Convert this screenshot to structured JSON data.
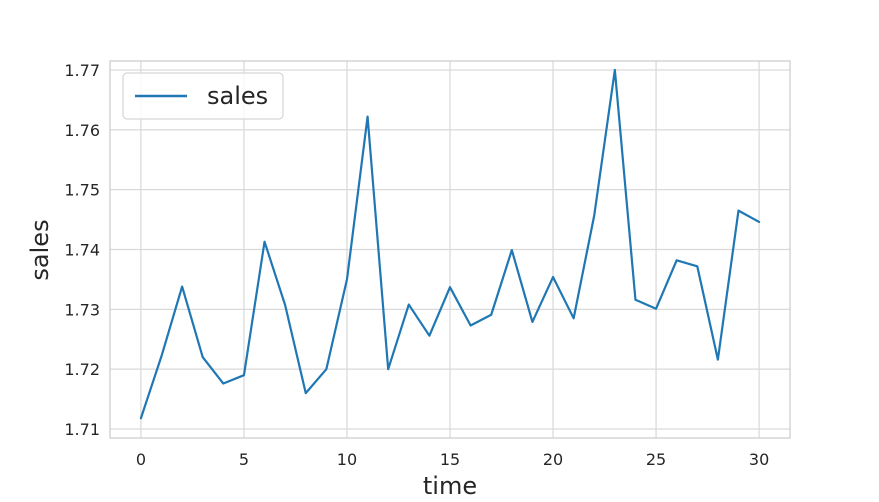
{
  "chart_data": {
    "type": "line",
    "title": "",
    "xlabel": "time",
    "ylabel": "sales",
    "xlim": [
      -1.5,
      31.5
    ],
    "ylim": [
      1.7085,
      1.7715
    ],
    "xticks": [
      0,
      5,
      10,
      15,
      20,
      25,
      30
    ],
    "yticks": [
      1.71,
      1.72,
      1.73,
      1.74,
      1.75,
      1.76,
      1.77
    ],
    "xtick_labels": [
      "0",
      "5",
      "10",
      "15",
      "20",
      "25",
      "30"
    ],
    "ytick_labels": [
      "1.71",
      "1.72",
      "1.73",
      "1.74",
      "1.75",
      "1.76",
      "1.77"
    ],
    "grid": true,
    "legend": {
      "position": "top-left",
      "entries": [
        "sales"
      ]
    },
    "series": [
      {
        "name": "sales",
        "color": "#1f77b4",
        "x": [
          0,
          1,
          2,
          3,
          4,
          5,
          6,
          7,
          8,
          9,
          10,
          11,
          12,
          13,
          14,
          15,
          16,
          17,
          18,
          19,
          20,
          21,
          22,
          23,
          24,
          25,
          26,
          27,
          28,
          29,
          30
        ],
        "y": [
          1.7118,
          1.7222,
          1.7338,
          1.722,
          1.7176,
          1.719,
          1.7413,
          1.7307,
          1.716,
          1.72,
          1.735,
          1.7622,
          1.72,
          1.7308,
          1.7256,
          1.7337,
          1.7273,
          1.7291,
          1.7399,
          1.7279,
          1.7354,
          1.7285,
          1.7457,
          1.77,
          1.7316,
          1.7301,
          1.7382,
          1.7372,
          1.7216,
          1.7465,
          1.7446
        ]
      }
    ]
  }
}
